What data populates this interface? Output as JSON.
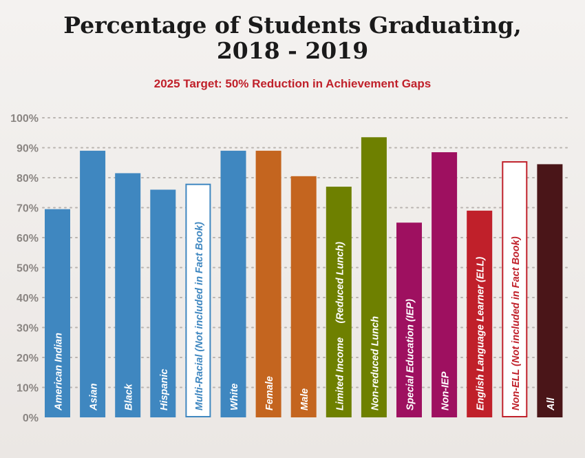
{
  "chart_data": {
    "type": "bar",
    "title_lines": [
      "Percentage of Students Graduating,",
      "2018 - 2019"
    ],
    "subtitle": "2025 Target: 50% Reduction in Achievement Gaps",
    "subtitle_color": "#c0202a",
    "ylim": [
      0,
      100
    ],
    "yticks": [
      0,
      10,
      20,
      30,
      40,
      50,
      60,
      70,
      80,
      90,
      100
    ],
    "ytick_suffix": "%",
    "grid": true,
    "bars": [
      {
        "label": "American Indian",
        "value": 69.5,
        "color": "#3f87c0",
        "outline": false
      },
      {
        "label": "Asian",
        "value": 89,
        "color": "#3f87c0",
        "outline": false
      },
      {
        "label": "Black",
        "value": 81.5,
        "color": "#3f87c0",
        "outline": false
      },
      {
        "label": "Hispanic",
        "value": 76,
        "color": "#3f87c0",
        "outline": false
      },
      {
        "label": "Multi-Racial (Not included in Fact Book)",
        "value": 78,
        "color": "#3f87c0",
        "outline": true
      },
      {
        "label": "White",
        "value": 89,
        "color": "#3f87c0",
        "outline": false
      },
      {
        "label": "Female",
        "value": 89,
        "color": "#c4651f",
        "outline": false
      },
      {
        "label": "Male",
        "value": 80.5,
        "color": "#c4651f",
        "outline": false
      },
      {
        "label": "Limited Income     (Reduced Lunch)",
        "value": 77,
        "color": "#6e8000",
        "outline": false
      },
      {
        "label": "Non-reduced Lunch",
        "value": 93.5,
        "color": "#6e8000",
        "outline": false
      },
      {
        "label": "Special Education (IEP)",
        "value": 65,
        "color": "#9e1060",
        "outline": false
      },
      {
        "label": "Non-IEP",
        "value": 88.5,
        "color": "#9e1060",
        "outline": false
      },
      {
        "label": "English Language Learner (ELL)",
        "value": 69,
        "color": "#c0202a",
        "outline": false
      },
      {
        "label": "Non-ELL (Not included in Fact Book)",
        "value": 85.5,
        "color": "#c0202a",
        "outline": true
      },
      {
        "label": "All",
        "value": 84.5,
        "color": "#4a1518",
        "outline": false
      }
    ]
  }
}
